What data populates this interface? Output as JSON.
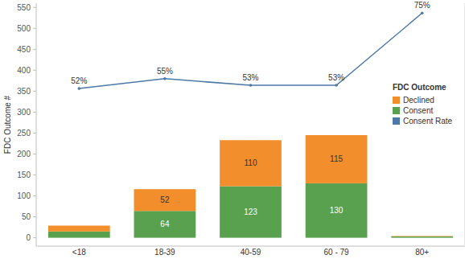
{
  "chart_data": {
    "type": "bar",
    "stacked": true,
    "data_labels": true,
    "legend": "right",
    "legend_title": "FDC Outcome",
    "y_label": "FDC Outcome #",
    "categories": [
      "<18",
      "18-39",
      "40-59",
      "60 - 79",
      "80+"
    ],
    "ylim": [
      -20,
      560
    ],
    "yticks": [
      0,
      50,
      100,
      150,
      200,
      250,
      300,
      350,
      400,
      450,
      500,
      550
    ],
    "y2lim": [
      4,
      78
    ],
    "y2ticks": [],
    "series": [
      {
        "name": "Declined",
        "color": "#f28e2b",
        "values": [
          14,
          52,
          110,
          115,
          1
        ],
        "value_labels": [
          null,
          "52",
          "110",
          "115",
          null
        ]
      },
      {
        "name": "Consent",
        "color": "#59a14f",
        "values": [
          15,
          64,
          123,
          130,
          3
        ],
        "value_labels": [
          null,
          "64",
          "123",
          "130",
          null
        ]
      },
      {
        "name": "Consent Rate",
        "type": "line",
        "axis": "y2",
        "color": "#4e79a7",
        "values": [
          52,
          55,
          53,
          53,
          75
        ],
        "value_labels": [
          "52%",
          "55%",
          "53%",
          "53%",
          "75%"
        ]
      }
    ]
  }
}
